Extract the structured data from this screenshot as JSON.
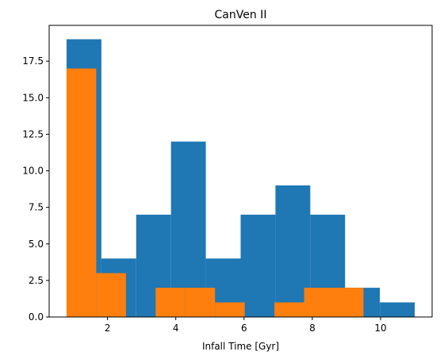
{
  "chart_data": {
    "type": "bar",
    "title": "CanVen II",
    "xlabel": "Infall Time [Gyr]",
    "ylabel": "",
    "xlim": [
      0.29,
      11.51
    ],
    "ylim": [
      0,
      19.95
    ],
    "x_ticks": [
      2,
      4,
      6,
      8,
      10
    ],
    "y_ticks": [
      0.0,
      2.5,
      5.0,
      7.5,
      10.0,
      12.5,
      15.0,
      17.5
    ],
    "grid": false,
    "legend": "none",
    "series": [
      {
        "color": "#1f77b4",
        "bins": [
          {
            "x0": 0.8,
            "x1": 1.82,
            "value": 19
          },
          {
            "x0": 1.82,
            "x1": 2.84,
            "value": 4
          },
          {
            "x0": 2.84,
            "x1": 3.86,
            "value": 7
          },
          {
            "x0": 3.86,
            "x1": 4.88,
            "value": 12
          },
          {
            "x0": 4.88,
            "x1": 5.9,
            "value": 4
          },
          {
            "x0": 5.9,
            "x1": 6.92,
            "value": 7
          },
          {
            "x0": 6.92,
            "x1": 7.94,
            "value": 9
          },
          {
            "x0": 7.94,
            "x1": 8.96,
            "value": 7
          },
          {
            "x0": 8.96,
            "x1": 9.98,
            "value": 2
          },
          {
            "x0": 9.98,
            "x1": 11.0,
            "value": 1
          }
        ]
      },
      {
        "color": "#ff7f0e",
        "bins": [
          {
            "x0": 0.8,
            "x1": 1.67,
            "value": 17
          },
          {
            "x0": 1.67,
            "x1": 2.54,
            "value": 3
          },
          {
            "x0": 2.54,
            "x1": 3.41,
            "value": 0
          },
          {
            "x0": 3.41,
            "x1": 4.28,
            "value": 2
          },
          {
            "x0": 4.28,
            "x1": 5.15,
            "value": 2
          },
          {
            "x0": 5.15,
            "x1": 6.02,
            "value": 1
          },
          {
            "x0": 6.02,
            "x1": 6.89,
            "value": 0
          },
          {
            "x0": 6.89,
            "x1": 7.76,
            "value": 1
          },
          {
            "x0": 7.76,
            "x1": 8.63,
            "value": 2
          },
          {
            "x0": 8.63,
            "x1": 9.5,
            "value": 2
          }
        ]
      }
    ]
  }
}
